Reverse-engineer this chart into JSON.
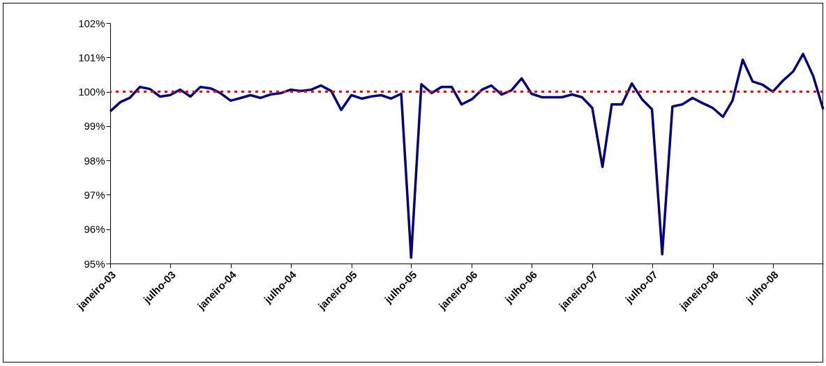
{
  "chart_data": {
    "type": "line",
    "x": [
      "2003-01",
      "2003-02",
      "2003-03",
      "2003-04",
      "2003-05",
      "2003-06",
      "2003-07",
      "2003-08",
      "2003-09",
      "2003-10",
      "2003-11",
      "2003-12",
      "2004-01",
      "2004-02",
      "2004-03",
      "2004-04",
      "2004-05",
      "2004-06",
      "2004-07",
      "2004-08",
      "2004-09",
      "2004-10",
      "2004-11",
      "2004-12",
      "2005-01",
      "2005-02",
      "2005-03",
      "2005-04",
      "2005-05",
      "2005-06",
      "2005-07",
      "2005-08",
      "2005-09",
      "2005-10",
      "2005-11",
      "2005-12",
      "2006-01",
      "2006-02",
      "2006-03",
      "2006-04",
      "2006-05",
      "2006-06",
      "2006-07",
      "2006-08",
      "2006-09",
      "2006-10",
      "2006-11",
      "2006-12",
      "2007-01",
      "2007-02",
      "2007-03",
      "2007-04",
      "2007-05",
      "2007-06",
      "2007-07",
      "2007-08",
      "2007-09",
      "2007-10",
      "2007-11",
      "2007-12",
      "2008-01",
      "2008-02",
      "2008-03",
      "2008-04",
      "2008-05",
      "2008-06",
      "2008-07",
      "2008-08",
      "2008-09",
      "2008-10",
      "2008-11",
      "2008-12"
    ],
    "series": [
      {
        "color": "#000080",
        "values": [
          99.43,
          99.7,
          99.82,
          100.14,
          100.08,
          99.86,
          99.9,
          100.06,
          99.86,
          100.14,
          100.1,
          99.96,
          99.74,
          99.82,
          99.9,
          99.82,
          99.92,
          99.96,
          100.06,
          100.02,
          100.06,
          100.18,
          100.02,
          99.47,
          99.9,
          99.8,
          99.86,
          99.9,
          99.8,
          99.94,
          95.17,
          100.22,
          99.96,
          100.14,
          100.14,
          99.63,
          99.78,
          100.06,
          100.18,
          99.92,
          100.04,
          100.39,
          99.94,
          99.84,
          99.84,
          99.84,
          99.92,
          99.84,
          99.53,
          97.81,
          99.63,
          99.63,
          100.24,
          99.78,
          99.49,
          95.27,
          99.57,
          99.63,
          99.82,
          99.67,
          99.53,
          99.27,
          99.74,
          100.93,
          100.3,
          100.2,
          100.0,
          100.32,
          100.59,
          101.1,
          100.45,
          99.49
        ]
      }
    ],
    "xlim": [
      "2003-01",
      "2008-12"
    ],
    "xticks": [
      {
        "value": "2003-01",
        "label": "janeiro-03"
      },
      {
        "value": "2003-07",
        "label": "julho-03"
      },
      {
        "value": "2004-01",
        "label": "janeiro-04"
      },
      {
        "value": "2004-07",
        "label": "julho-04"
      },
      {
        "value": "2005-01",
        "label": "janeiro-05"
      },
      {
        "value": "2005-07",
        "label": "julho-05"
      },
      {
        "value": "2006-01",
        "label": "janeiro-06"
      },
      {
        "value": "2006-07",
        "label": "julho-06"
      },
      {
        "value": "2007-01",
        "label": "janeiro-07"
      },
      {
        "value": "2007-07",
        "label": "julho-07"
      },
      {
        "value": "2008-01",
        "label": "janeiro-08"
      },
      {
        "value": "2008-07",
        "label": "julho-08"
      }
    ],
    "ylim": [
      95,
      102
    ],
    "yticks": [
      {
        "value": 95,
        "label": "95%"
      },
      {
        "value": 96,
        "label": "96%"
      },
      {
        "value": 97,
        "label": "97%"
      },
      {
        "value": 98,
        "label": "98%"
      },
      {
        "value": 99,
        "label": "99%"
      },
      {
        "value": 100,
        "label": "100%"
      },
      {
        "value": 101,
        "label": "101%"
      },
      {
        "value": 102,
        "label": "102%"
      }
    ],
    "ref_lines": [
      {
        "axis": "y",
        "value": 100,
        "color": "#ff0000",
        "line_style": "dotted"
      }
    ],
    "grid": false,
    "marker": "none",
    "line_style": "solid"
  }
}
